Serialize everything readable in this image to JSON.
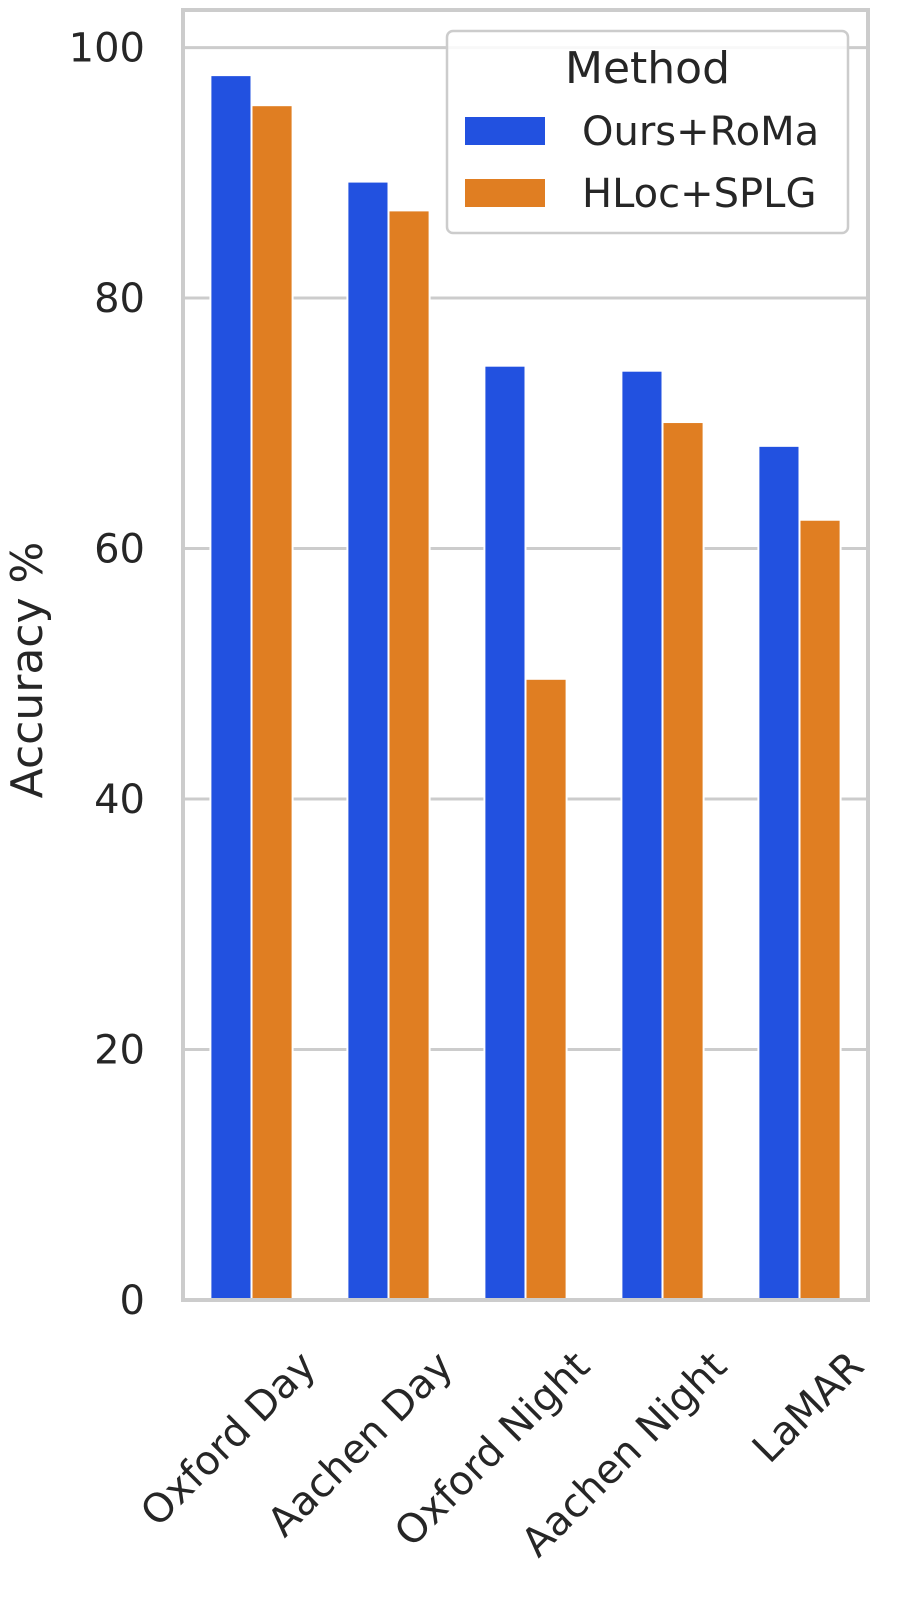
{
  "chart_data": {
    "type": "bar",
    "ylabel": "Accuracy %",
    "xlabel": "",
    "ylim": [
      0,
      103
    ],
    "yticks": [
      0,
      20,
      40,
      60,
      80,
      100
    ],
    "grid": true,
    "legend": {
      "title": "Method",
      "placement": "top-right"
    },
    "categories": [
      "Oxford Day",
      "Aachen Day",
      "Oxford Night",
      "Aachen Night",
      "LaMAR"
    ],
    "series": [
      {
        "name": "Ours+RoMa",
        "color": "#2251e0",
        "values": [
          97.8,
          89.3,
          74.6,
          74.2,
          68.2
        ]
      },
      {
        "name": "HLoc+SPLG",
        "color": "#e07e22",
        "values": [
          95.4,
          87.0,
          49.6,
          70.1,
          62.3
        ]
      }
    ]
  }
}
